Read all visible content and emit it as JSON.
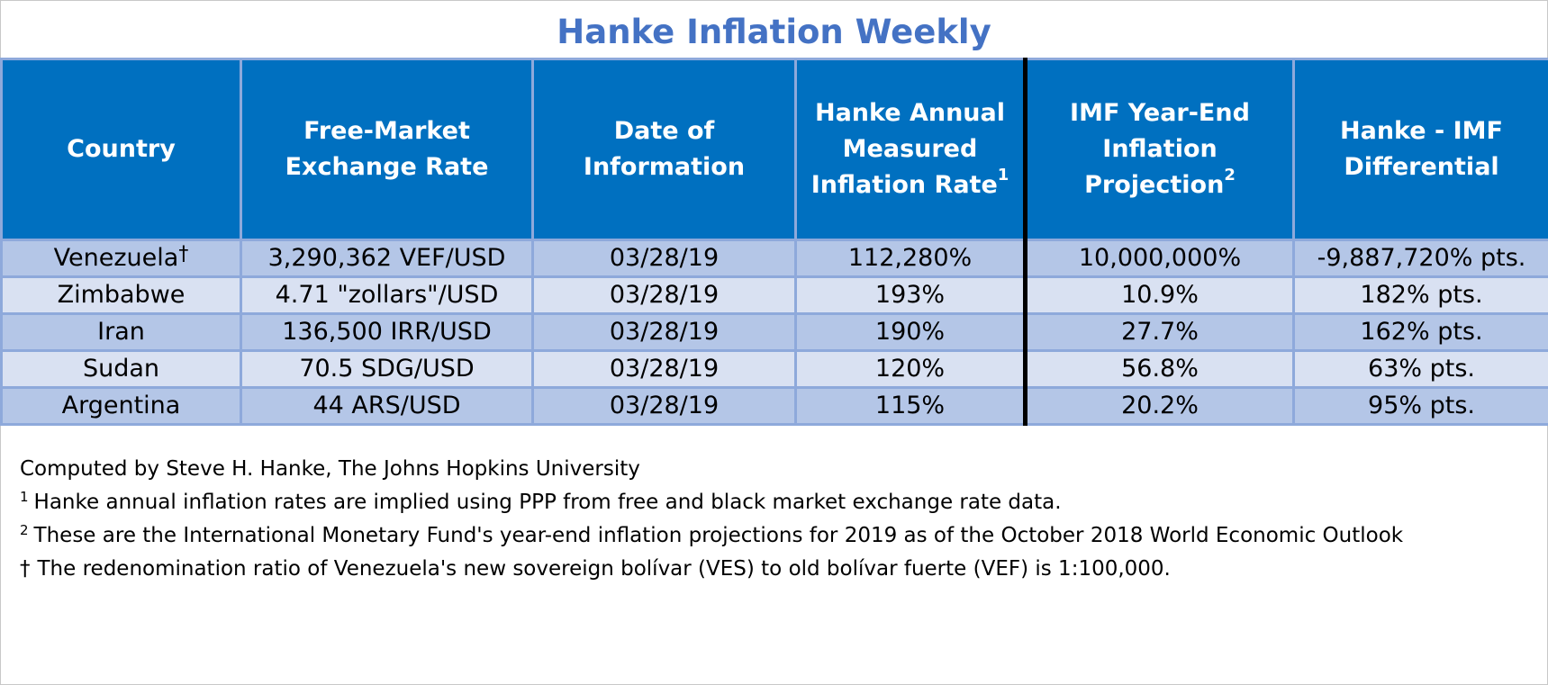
{
  "title": "Hanke Inflation Weekly",
  "colors": {
    "title": "#4472c4",
    "header_background": "#0070c0",
    "header_text": "#ffffff",
    "row_dark": "#b4c6e7",
    "row_light": "#d9e1f2",
    "grid_line": "#8ea9db"
  },
  "table": {
    "headers": [
      {
        "lines": [
          "Country"
        ]
      },
      {
        "lines": [
          "Free-Market",
          "Exchange Rate"
        ]
      },
      {
        "lines": [
          "Date of",
          "Information"
        ]
      },
      {
        "lines": [
          "Hanke Annual",
          "Measured",
          "Inflation Rate"
        ],
        "sup": "1"
      },
      {
        "lines": [
          "IMF Year-End",
          "Inflation",
          "Projection"
        ],
        "sup": "2"
      },
      {
        "lines": [
          "Hanke - IMF",
          "Differential"
        ]
      }
    ],
    "rows": [
      {
        "country": "Venezuela",
        "mark": "†",
        "rate": "3,290,362 VEF/USD",
        "date": "03/28/19",
        "hanke": "112,280%",
        "imf": "10,000,000%",
        "diff": "-9,887,720% pts."
      },
      {
        "country": "Zimbabwe",
        "mark": "",
        "rate": "4.71 \"zollars\"/USD",
        "date": "03/28/19",
        "hanke": "193%",
        "imf": "10.9%",
        "diff": "182% pts."
      },
      {
        "country": "Iran",
        "mark": "",
        "rate": "136,500 IRR/USD",
        "date": "03/28/19",
        "hanke": "190%",
        "imf": "27.7%",
        "diff": "162% pts."
      },
      {
        "country": "Sudan",
        "mark": "",
        "rate": "70.5 SDG/USD",
        "date": "03/28/19",
        "hanke": "120%",
        "imf": "56.8%",
        "diff": "63% pts."
      },
      {
        "country": "Argentina",
        "mark": "",
        "rate": "44 ARS/USD",
        "date": "03/28/19",
        "hanke": "115%",
        "imf": "20.2%",
        "diff": "95% pts."
      }
    ]
  },
  "notes": [
    {
      "mark": "",
      "text": "Computed by Steve H. Hanke, The Johns Hopkins University"
    },
    {
      "mark": "1",
      "text": "Hanke annual inflation rates are implied using PPP from free and black market exchange rate data."
    },
    {
      "mark": "2",
      "text": "These are the International Monetary Fund's year-end inflation projections for 2019 as of the October 2018 World Economic Outlook"
    },
    {
      "mark": "†",
      "text": "The redenomination ratio of Venezuela's new sovereign bolívar (VES) to old bolívar fuerte (VEF) is 1:100,000."
    }
  ]
}
